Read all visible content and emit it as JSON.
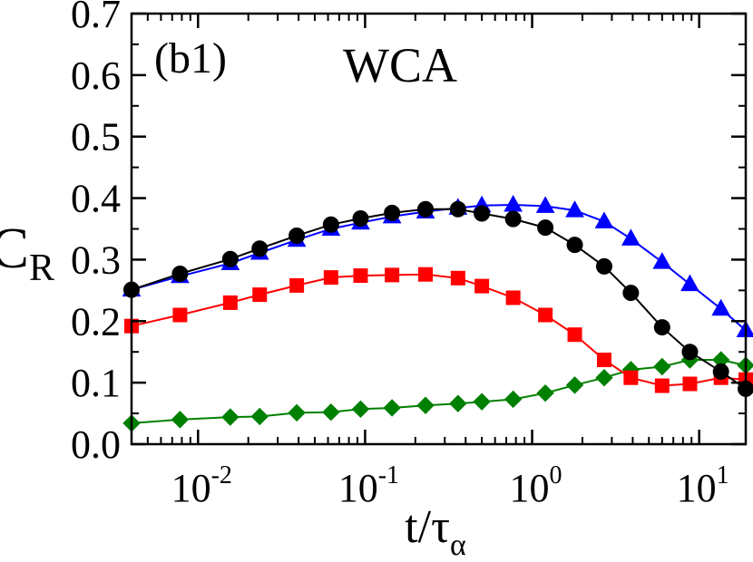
{
  "chart_data": {
    "type": "line",
    "panel_label": "(b1)",
    "annotation": "WCA",
    "xlabel": {
      "main": "t/",
      "greek": "τ",
      "sub": "α"
    },
    "ylabel": {
      "main": "C",
      "sub": "R"
    },
    "xscale": "log",
    "xlim": [
      0.004,
      19
    ],
    "ylim": [
      0.0,
      0.7
    ],
    "yticks": [
      "0.0",
      "0.1",
      "0.2",
      "0.3",
      "0.4",
      "0.5",
      "0.6",
      "0.7"
    ],
    "xticks": [
      {
        "base": "10",
        "exp": "-2",
        "value": 0.01
      },
      {
        "base": "10",
        "exp": "-1",
        "value": 0.1
      },
      {
        "base": "10",
        "exp": "0",
        "value": 1
      },
      {
        "base": "10",
        "exp": "1",
        "value": 10
      }
    ],
    "series": [
      {
        "name": "circles",
        "marker": "circle",
        "color": "#000000",
        "x": [
          0.004,
          0.0078,
          0.0156,
          0.0234,
          0.039,
          0.0625,
          0.094,
          0.145,
          0.23,
          0.36,
          0.5,
          0.77,
          1.2,
          1.8,
          2.7,
          3.9,
          6.0,
          8.8,
          13.5,
          19
        ],
        "y": [
          0.251,
          0.277,
          0.301,
          0.318,
          0.339,
          0.357,
          0.367,
          0.376,
          0.382,
          0.382,
          0.375,
          0.366,
          0.352,
          0.324,
          0.289,
          0.246,
          0.19,
          0.15,
          0.118,
          0.09
        ]
      },
      {
        "name": "triangles",
        "marker": "triangle",
        "color": "#0000ff",
        "x": [
          0.004,
          0.0078,
          0.0156,
          0.0234,
          0.039,
          0.0625,
          0.094,
          0.145,
          0.23,
          0.36,
          0.5,
          0.77,
          1.2,
          1.8,
          2.7,
          3.9,
          6.0,
          8.8,
          13.5,
          19
        ],
        "y": [
          0.251,
          0.273,
          0.294,
          0.311,
          0.332,
          0.35,
          0.36,
          0.37,
          0.378,
          0.384,
          0.388,
          0.389,
          0.387,
          0.38,
          0.362,
          0.334,
          0.296,
          0.26,
          0.22,
          0.185
        ]
      },
      {
        "name": "squares",
        "marker": "square",
        "color": "#ff0000",
        "x": [
          0.004,
          0.0078,
          0.0156,
          0.0234,
          0.039,
          0.0625,
          0.094,
          0.145,
          0.23,
          0.36,
          0.5,
          0.77,
          1.2,
          1.8,
          2.7,
          3.9,
          6.0,
          8.8,
          13.5,
          19
        ],
        "y": [
          0.192,
          0.21,
          0.23,
          0.243,
          0.258,
          0.271,
          0.274,
          0.275,
          0.276,
          0.27,
          0.257,
          0.238,
          0.21,
          0.178,
          0.137,
          0.108,
          0.095,
          0.098,
          0.108,
          0.105
        ]
      },
      {
        "name": "diamonds",
        "marker": "diamond",
        "color": "#008000",
        "x": [
          0.004,
          0.0078,
          0.0156,
          0.0234,
          0.039,
          0.0625,
          0.094,
          0.145,
          0.23,
          0.36,
          0.5,
          0.77,
          1.2,
          1.8,
          2.7,
          3.9,
          6.0,
          8.8,
          13.5,
          19
        ],
        "y": [
          0.034,
          0.04,
          0.044,
          0.045,
          0.051,
          0.052,
          0.057,
          0.059,
          0.063,
          0.066,
          0.069,
          0.073,
          0.083,
          0.096,
          0.108,
          0.121,
          0.126,
          0.137,
          0.137,
          0.128
        ]
      }
    ]
  }
}
